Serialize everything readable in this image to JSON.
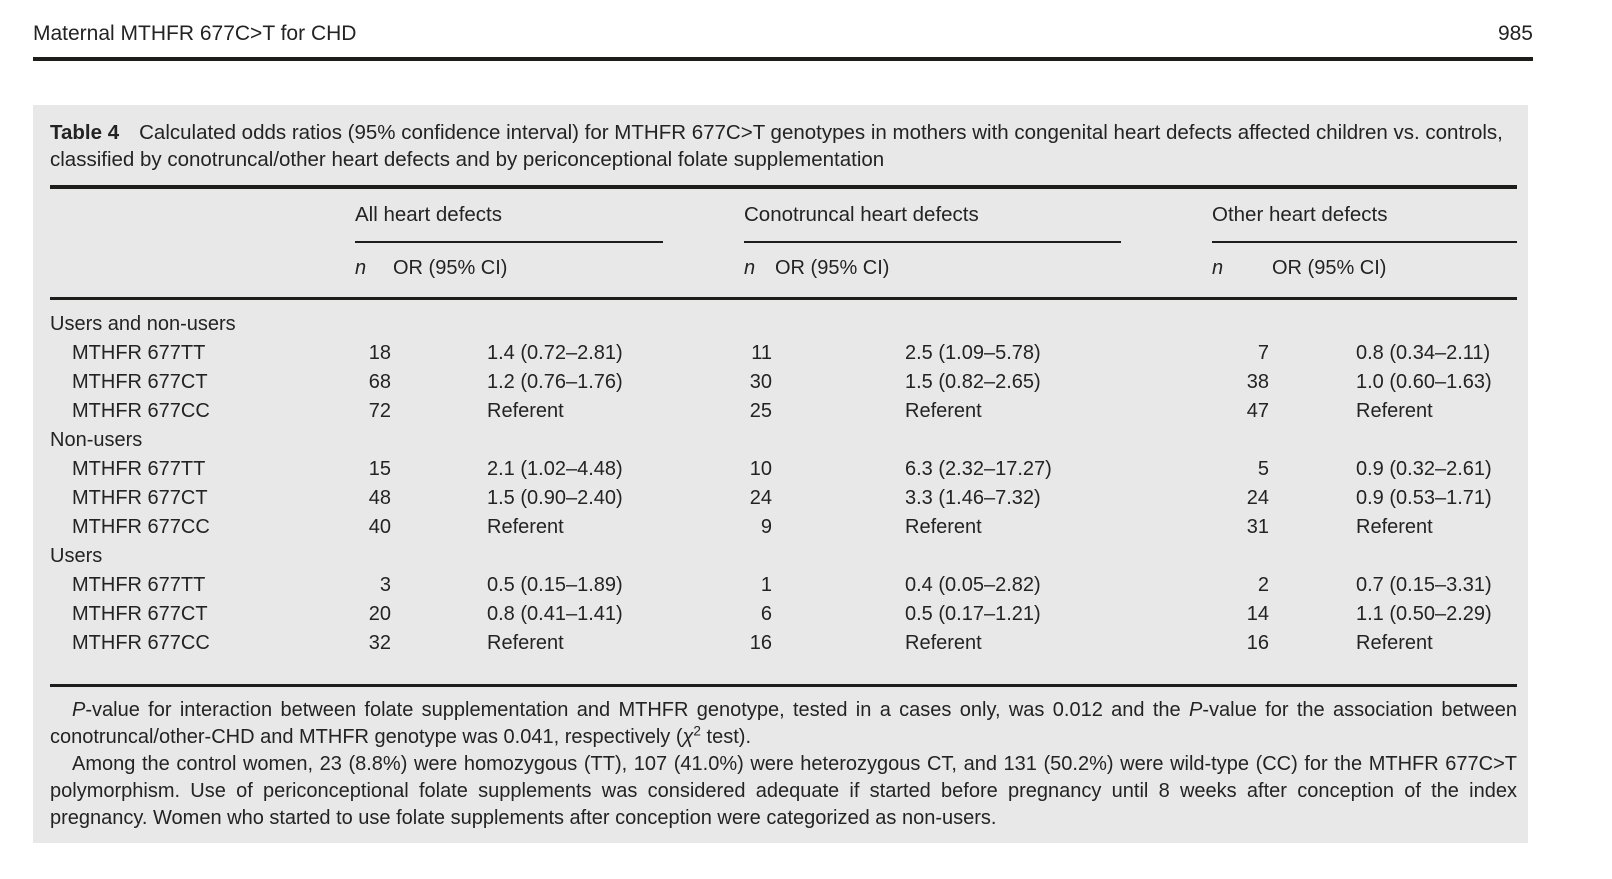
{
  "colors": {
    "panel_background": "#e8e8e8",
    "text": "#232323",
    "rule": "#1d1d1b"
  },
  "running_head": {
    "title": "Maternal MTHFR 677C>T for CHD",
    "page_number": "985"
  },
  "table": {
    "caption_label": "Table 4",
    "caption_text": "Calculated odds ratios (95% confidence interval) for MTHFR 677C>T genotypes in mothers with congenital heart defects affected children vs. controls, classified by conotruncal/other heart defects and by periconceptional folate supplementation",
    "groups": [
      {
        "label": "All heart defects"
      },
      {
        "label": "Conotruncal heart defects"
      },
      {
        "label": "Other heart defects"
      }
    ],
    "subheaders": {
      "n": "n",
      "or": "OR (95% CI)"
    },
    "sections": [
      {
        "label": "Users and non-users",
        "rows": [
          {
            "genotype": "MTHFR 677TT",
            "all": {
              "n": "18",
              "or": "1.4 (0.72–2.81)"
            },
            "conotruncal": {
              "n": "11",
              "or": "2.5 (1.09–5.78)"
            },
            "other": {
              "n": "7",
              "or": "0.8 (0.34–2.11)"
            }
          },
          {
            "genotype": "MTHFR 677CT",
            "all": {
              "n": "68",
              "or": "1.2 (0.76–1.76)"
            },
            "conotruncal": {
              "n": "30",
              "or": "1.5 (0.82–2.65)"
            },
            "other": {
              "n": "38",
              "or": "1.0 (0.60–1.63)"
            }
          },
          {
            "genotype": "MTHFR 677CC",
            "all": {
              "n": "72",
              "or": "Referent"
            },
            "conotruncal": {
              "n": "25",
              "or": "Referent"
            },
            "other": {
              "n": "47",
              "or": "Referent"
            }
          }
        ]
      },
      {
        "label": "Non-users",
        "rows": [
          {
            "genotype": "MTHFR 677TT",
            "all": {
              "n": "15",
              "or": "2.1 (1.02–4.48)"
            },
            "conotruncal": {
              "n": "10",
              "or": "6.3 (2.32–17.27)"
            },
            "other": {
              "n": "5",
              "or": "0.9 (0.32–2.61)"
            }
          },
          {
            "genotype": "MTHFR 677CT",
            "all": {
              "n": "48",
              "or": "1.5 (0.90–2.40)"
            },
            "conotruncal": {
              "n": "24",
              "or": "3.3 (1.46–7.32)"
            },
            "other": {
              "n": "24",
              "or": "0.9 (0.53–1.71)"
            }
          },
          {
            "genotype": "MTHFR 677CC",
            "all": {
              "n": "40",
              "or": "Referent"
            },
            "conotruncal": {
              "n": "9",
              "or": "Referent"
            },
            "other": {
              "n": "31",
              "or": "Referent"
            }
          }
        ]
      },
      {
        "label": "Users",
        "rows": [
          {
            "genotype": "MTHFR 677TT",
            "all": {
              "n": "3",
              "or": "0.5 (0.15–1.89)"
            },
            "conotruncal": {
              "n": "1",
              "or": "0.4 (0.05–2.82)"
            },
            "other": {
              "n": "2",
              "or": "0.7 (0.15–3.31)"
            }
          },
          {
            "genotype": "MTHFR 677CT",
            "all": {
              "n": "20",
              "or": "0.8 (0.41–1.41)"
            },
            "conotruncal": {
              "n": "6",
              "or": "0.5 (0.17–1.21)"
            },
            "other": {
              "n": "14",
              "or": "1.1 (0.50–2.29)"
            }
          },
          {
            "genotype": "MTHFR 677CC",
            "all": {
              "n": "32",
              "or": "Referent"
            },
            "conotruncal": {
              "n": "16",
              "or": "Referent"
            },
            "other": {
              "n": "16",
              "or": "Referent"
            }
          }
        ]
      }
    ]
  },
  "footnotes": [
    {
      "segments": [
        {
          "text": "P",
          "italic": true
        },
        {
          "text": "-value for interaction between folate supplementation and MTHFR genotype, tested in a cases only, was 0.012 and the "
        },
        {
          "text": "P",
          "italic": true
        },
        {
          "text": "-value for the association between conotruncal/other-CHD and MTHFR genotype was 0.041, respectively ("
        },
        {
          "text": "χ",
          "italic": true
        },
        {
          "text": "2",
          "sup": true
        },
        {
          "text": " test)."
        }
      ]
    },
    {
      "segments": [
        {
          "text": "Among the control women, 23 (8.8%) were homozygous (TT), 107 (41.0%) were heterozygous CT, and 131 (50.2%) were wild-type (CC) for the MTHFR 677C>T polymorphism. Use of periconceptional folate supplements was considered adequate if started before pregnancy until 8 weeks after conception of the index pregnancy. Women who started to use folate supplements after conception were categorized as non-users."
        }
      ]
    }
  ]
}
